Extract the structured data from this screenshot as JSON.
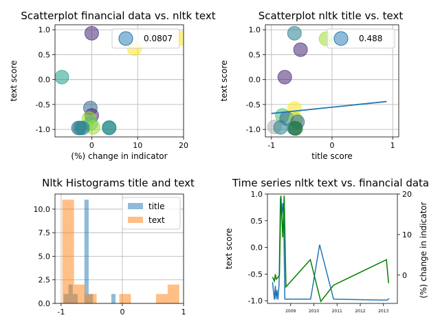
{
  "chart_data": [
    {
      "type": "scatter",
      "title": "Scatterplot financial data vs. nltk text",
      "xlabel": "(%) change in indicator",
      "ylabel": "text score",
      "xlim": [
        -8,
        20
      ],
      "ylim": [
        -1.15,
        1.1
      ],
      "xticks": [
        0,
        10,
        20
      ],
      "yticks": [
        -1.0,
        -0.5,
        0.0,
        0.5,
        1.0
      ],
      "grid": true,
      "legend": {
        "label": "0.0807",
        "placement": "top-right"
      },
      "points": [
        {
          "x": 0,
          "y": 0.93,
          "color": "#482878"
        },
        {
          "x": 19.6,
          "y": 0.83,
          "color": "#fde725"
        },
        {
          "x": 9.3,
          "y": 0.62,
          "color": "#fde725"
        },
        {
          "x": -6.5,
          "y": 0.05,
          "color": "#1fa187"
        },
        {
          "x": -0.3,
          "y": -0.57,
          "color": "#31688e"
        },
        {
          "x": 0,
          "y": -0.72,
          "color": "#482878"
        },
        {
          "x": -0.6,
          "y": -0.78,
          "color": "#a0da39"
        },
        {
          "x": -0.2,
          "y": -0.88,
          "color": "#4ac16d"
        },
        {
          "x": 0.3,
          "y": -0.96,
          "color": "#a0da39"
        },
        {
          "x": 3.8,
          "y": -0.96,
          "color": "#1fa187"
        },
        {
          "x": 3.8,
          "y": -0.97,
          "color": "#26828e"
        },
        {
          "x": -2.9,
          "y": -0.97,
          "color": "#31688e"
        },
        {
          "x": -2.5,
          "y": -0.97,
          "color": "#26828e"
        },
        {
          "x": -2.0,
          "y": -0.97,
          "color": "#26828e"
        }
      ]
    },
    {
      "type": "scatter",
      "title": "Scatterplot nltk title vs. text",
      "xlabel": "title score",
      "ylabel": "text score",
      "xlim": [
        -1.1,
        1.1
      ],
      "ylim": [
        -1.15,
        1.1
      ],
      "xticks": [
        -1,
        0,
        1
      ],
      "yticks": [
        -1.0,
        -0.5,
        0.0,
        0.5,
        1.0
      ],
      "grid": true,
      "legend": {
        "label": "0.488",
        "placement": "top-right"
      },
      "fit_line": {
        "x": [
          -1.0,
          0.9
        ],
        "y": [
          -0.68,
          -0.44
        ]
      },
      "points": [
        {
          "x": -0.62,
          "y": 0.93,
          "color": "#26828e"
        },
        {
          "x": -0.1,
          "y": 0.82,
          "color": "#a0da39"
        },
        {
          "x": -0.52,
          "y": 0.6,
          "color": "#482878"
        },
        {
          "x": -0.78,
          "y": 0.05,
          "color": "#482878"
        },
        {
          "x": -0.62,
          "y": -0.58,
          "color": "#fde725"
        },
        {
          "x": -0.82,
          "y": -0.72,
          "color": "#4ac16d"
        },
        {
          "x": -0.75,
          "y": -0.78,
          "color": "#31688e"
        },
        {
          "x": -0.6,
          "y": -0.8,
          "color": "#a0da39"
        },
        {
          "x": -0.57,
          "y": -0.85,
          "color": "#31688e"
        },
        {
          "x": -0.95,
          "y": -0.95,
          "color": "#b0b0b0"
        },
        {
          "x": -0.85,
          "y": -0.96,
          "color": "#26828e"
        },
        {
          "x": -0.63,
          "y": -0.97,
          "color": "#1fa187"
        },
        {
          "x": -0.61,
          "y": -0.98,
          "color": "#31688e"
        },
        {
          "x": -0.6,
          "y": -0.98,
          "color": "#2a7a2a"
        }
      ]
    },
    {
      "type": "histogram",
      "title": "Nltk Histograms title and text",
      "xlim": [
        -1.1,
        1.0
      ],
      "ylim": [
        0,
        11.6
      ],
      "xticks": [
        -1,
        0,
        1
      ],
      "yticks": [
        0.0,
        2.5,
        5.0,
        7.5,
        10.0
      ],
      "grid": true,
      "legend_placement": "top-right",
      "series": [
        {
          "name": "title",
          "color": "#1f77b4",
          "bins": [
            {
              "x0": -0.96,
              "x1": -0.88,
              "count": 1
            },
            {
              "x0": -0.88,
              "x1": -0.81,
              "count": 2
            },
            {
              "x0": -0.81,
              "x1": -0.73,
              "count": 1
            },
            {
              "x0": -0.62,
              "x1": -0.55,
              "count": 11
            },
            {
              "x0": -0.55,
              "x1": -0.48,
              "count": 1
            },
            {
              "x0": -0.18,
              "x1": -0.11,
              "count": 1
            }
          ]
        },
        {
          "name": "text",
          "color": "#ff7f0e",
          "bins": [
            {
              "x0": -0.98,
              "x1": -0.79,
              "count": 11
            },
            {
              "x0": -0.79,
              "x1": -0.61,
              "count": 2
            },
            {
              "x0": -0.61,
              "x1": -0.42,
              "count": 1
            },
            {
              "x0": -0.05,
              "x1": 0.14,
              "count": 1
            },
            {
              "x0": 0.55,
              "x1": 0.74,
              "count": 1
            },
            {
              "x0": 0.74,
              "x1": 0.93,
              "count": 2
            }
          ]
        }
      ]
    },
    {
      "type": "line",
      "title": "Time series nltk text vs. financial data",
      "ylabel": "text score",
      "y2label": "(%) change in indicator",
      "xlim": [
        2008.0,
        2013.6
      ],
      "xticks": [
        "2009",
        "2010",
        "2011",
        "2012",
        "2013"
      ],
      "ylim": [
        -1.05,
        1.0
      ],
      "yticks": [
        -1.0,
        -0.5,
        0.0,
        0.5,
        1.0
      ],
      "y2lim": [
        -7,
        20
      ],
      "y2ticks": [
        0,
        10,
        20
      ],
      "series": [
        {
          "name": "text score",
          "axis": "left",
          "color": "#1f77b4",
          "x": [
            2008.22,
            2008.3,
            2008.34,
            2008.37,
            2008.41,
            2008.45,
            2008.5,
            2008.56,
            2008.62,
            2008.66,
            2008.7,
            2008.75,
            2008.79,
            2009.86,
            2010.25,
            2010.85,
            2013.15,
            2013.25
          ],
          "y": [
            -0.65,
            -0.98,
            -0.72,
            -0.97,
            -0.8,
            -0.98,
            -0.7,
            0.93,
            0.6,
            0.83,
            0.58,
            -0.97,
            -0.97,
            -0.97,
            0.05,
            -0.97,
            -0.99,
            -0.96
          ]
        },
        {
          "name": "(%) change in indicator",
          "axis": "right",
          "color": "#008000",
          "x": [
            2008.22,
            2008.3,
            2008.34,
            2008.38,
            2008.42,
            2008.46,
            2008.52,
            2008.58,
            2008.66,
            2008.72,
            2008.8,
            2009.85,
            2010.3,
            2010.85,
            2013.13,
            2013.22
          ],
          "y": [
            -0.5,
            -1.5,
            0.2,
            -1.0,
            -0.8,
            -0.5,
            0.0,
            19.6,
            9.3,
            19.6,
            -2.9,
            3.8,
            -6.5,
            -2.5,
            3.8,
            -2.0
          ]
        }
      ]
    }
  ]
}
